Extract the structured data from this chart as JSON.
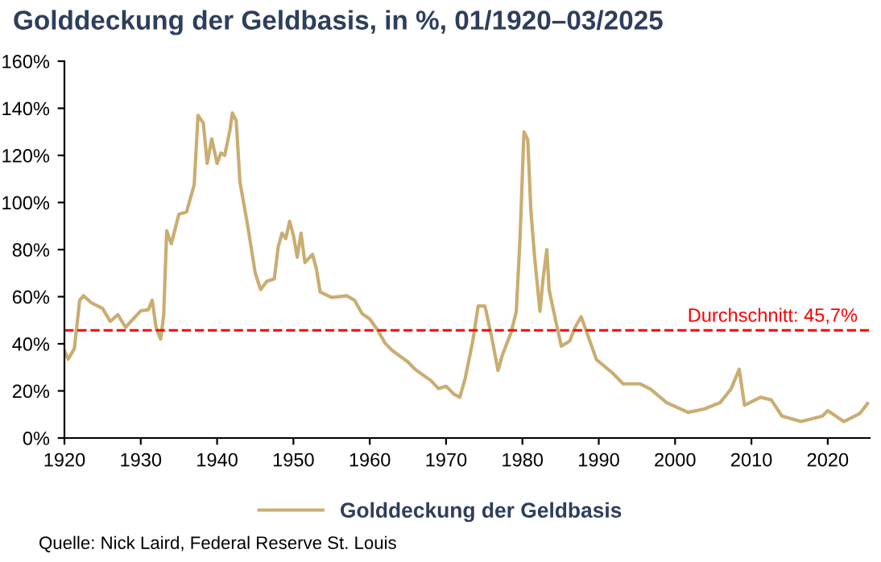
{
  "chart_data": {
    "type": "line",
    "title": "Golddeckung der Geldbasis, in %, 01/1920–03/2025",
    "series": [
      {
        "name": "Golddeckung der Geldbasis",
        "color": "#c9ad72",
        "x": [
          1920,
          1920.5,
          1921.3,
          1922,
          1922.5,
          1923.5,
          1925,
          1926,
          1927,
          1928,
          1929,
          1930,
          1931,
          1931.5,
          1932,
          1932.6,
          1933,
          1933.4,
          1934,
          1935,
          1936,
          1937,
          1937.5,
          1938.2,
          1938.7,
          1939.3,
          1940,
          1940.5,
          1941,
          1941.7,
          1942,
          1942.5,
          1943,
          1944,
          1945,
          1945.7,
          1946.5,
          1947.5,
          1948,
          1948.5,
          1949,
          1949.5,
          1950,
          1950.5,
          1951,
          1951.5,
          1952.5,
          1953,
          1953.5,
          1955,
          1957,
          1958,
          1959,
          1960,
          1961,
          1962,
          1963,
          1965,
          1966,
          1968,
          1969,
          1970,
          1971,
          1971.8,
          1972.5,
          1973.5,
          1974.2,
          1975.1,
          1976,
          1976.8,
          1977.4,
          1978.5,
          1979.2,
          1979.7,
          1980.2,
          1980.7,
          1981.1,
          1981.6,
          1982.3,
          1982.7,
          1983.2,
          1983.5,
          1984.4,
          1985.1,
          1986.2,
          1986.9,
          1987.7,
          1988.7,
          1989.7,
          1991.8,
          1993.2,
          1995.4,
          1996.8,
          1998.9,
          2001.7,
          2003.8,
          2005.9,
          2007.3,
          2008.4,
          2009.1,
          2011.2,
          2012.6,
          2014,
          2016.5,
          2019.3,
          2020,
          2022.1,
          2024.2,
          2025.2
        ],
        "values": [
          37,
          33.5,
          38,
          58.5,
          60.4,
          57.5,
          55,
          49.5,
          52.4,
          47,
          50.5,
          54,
          54.5,
          58.5,
          47,
          42,
          52,
          88,
          82.5,
          95,
          96,
          107.5,
          137,
          133.7,
          116.6,
          127,
          116.6,
          121,
          120,
          131,
          138,
          134.8,
          108.6,
          90.4,
          70,
          63,
          66.5,
          67.6,
          81,
          87,
          84.7,
          92,
          86,
          76.8,
          87,
          74.5,
          78,
          72,
          62,
          59.7,
          60.4,
          58.5,
          52.8,
          50.5,
          46,
          40.3,
          37,
          32.3,
          29,
          24.4,
          21,
          22,
          18.7,
          17.3,
          25.3,
          41.2,
          56,
          56,
          42.4,
          28.7,
          35.5,
          44.6,
          53.8,
          85.7,
          130,
          126.7,
          97,
          76.6,
          53.8,
          67.5,
          80,
          62.9,
          49.2,
          39,
          41.2,
          47,
          51.5,
          42.4,
          33.3,
          27.6,
          23,
          23,
          20.7,
          15,
          10.9,
          12.3,
          15,
          20.7,
          29.2,
          13.9,
          17.3,
          16.2,
          9.3,
          7,
          9.3,
          11.6,
          7,
          10.4,
          14.6
        ]
      }
    ],
    "xlim": [
      1920,
      2025.5
    ],
    "xticks": [
      1920,
      1930,
      1940,
      1950,
      1960,
      1970,
      1980,
      1990,
      2000,
      2010,
      2020
    ],
    "ylim": [
      0,
      160
    ],
    "yticks": [
      {
        "value": 0,
        "label": "0%"
      },
      {
        "value": 20,
        "label": "20%"
      },
      {
        "value": 40,
        "label": "40%"
      },
      {
        "value": 60,
        "label": "60%"
      },
      {
        "value": 80,
        "label": "80%"
      },
      {
        "value": 100,
        "label": "100%"
      },
      {
        "value": 120,
        "label": "120%"
      },
      {
        "value": 140,
        "label": "140%"
      },
      {
        "value": 160,
        "label": "160%"
      }
    ],
    "ref_lines": [
      {
        "axis": "y",
        "value": 45.7,
        "label": "Durchschnitt: 45,7%",
        "color": "#ff0000",
        "line_style": "dashed"
      }
    ],
    "legend": "bottom",
    "grid": false,
    "marker": "none",
    "line_style": "solid",
    "annotations": [
      "Quelle: Nick Laird, Federal Reserve St. Louis"
    ]
  }
}
